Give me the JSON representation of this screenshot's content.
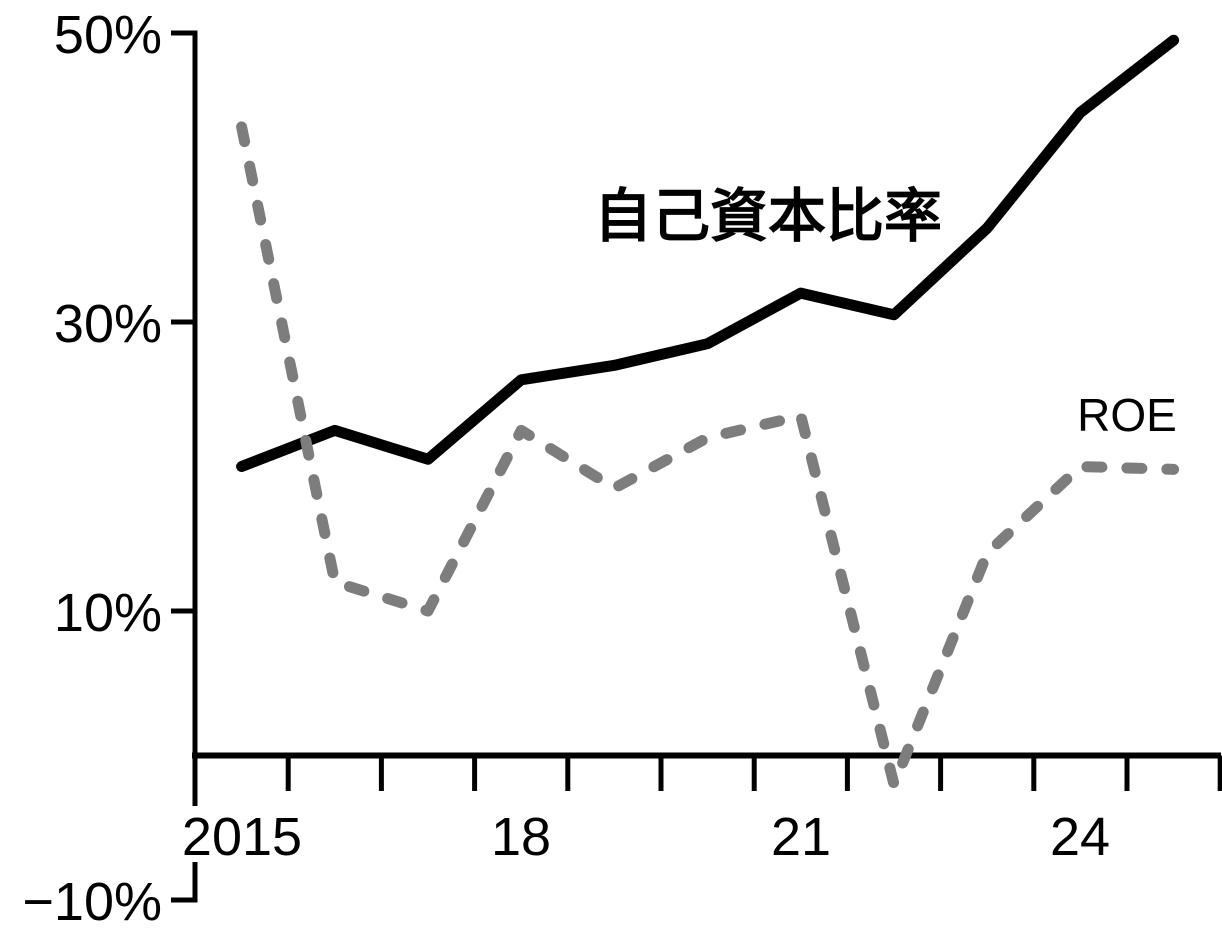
{
  "page": {
    "background_color": "#ffffff",
    "accent_black": "#000000",
    "accent_gray": "#7d7d7d"
  },
  "chart_data": {
    "type": "line",
    "title": "",
    "grid": false,
    "legend_position": "inline-labels-near-lines",
    "categories": [
      2015,
      2016,
      2017,
      2018,
      2019,
      2020,
      2021,
      2022,
      2023,
      2024,
      2025
    ],
    "series": [
      {
        "name": "自己資本比率",
        "line_style": "solid",
        "color": "#000000",
        "values": [
          20,
          22.5,
          20.5,
          26,
          27,
          28.5,
          32,
          30.5,
          36.5,
          44.5,
          49.5
        ]
      },
      {
        "name": "ROE",
        "line_style": "dashed",
        "color": "#7d7d7d",
        "values": [
          43.5,
          12,
          10,
          22.5,
          18.5,
          22,
          23.5,
          -2,
          14,
          20,
          19.8
        ]
      }
    ],
    "x_axis": {
      "unit": "year",
      "tick_boundaries": [
        2015,
        2016,
        2017,
        2018,
        2019,
        2020,
        2021,
        2022,
        2023,
        2024,
        2025,
        2026
      ],
      "tick_labels": [
        {
          "year": 2015,
          "label": "2015"
        },
        {
          "year": 2018,
          "label": "18"
        },
        {
          "year": 2021,
          "label": "21"
        },
        {
          "year": 2024,
          "label": "24"
        }
      ]
    },
    "y_axis": {
      "unit": "%",
      "min": -10,
      "max": 50,
      "ticks": [
        {
          "value": 50,
          "label": "50%"
        },
        {
          "value": 30,
          "label": "30%"
        },
        {
          "value": 10,
          "label": "10%"
        },
        {
          "value": -10,
          "label": "−10%"
        }
      ]
    }
  }
}
